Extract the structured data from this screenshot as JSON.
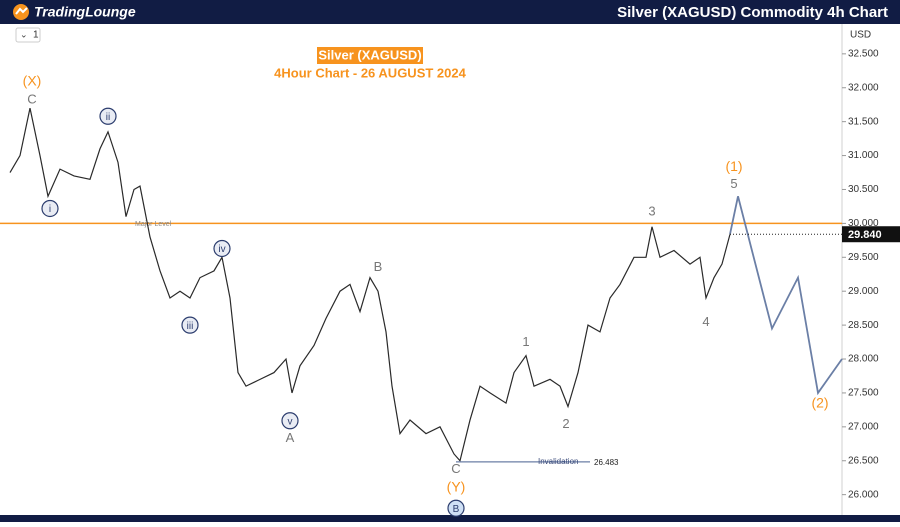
{
  "header": {
    "brand": "TradingLounge",
    "title": "Silver (XAGUSD) Commodity 4h Chart"
  },
  "chart_data": {
    "type": "line",
    "title": "Silver (XAGUSD)",
    "subtitle": "4Hour Chart - 26 AUGUST 2024",
    "interval": "1",
    "currency": "USD",
    "xlim": [
      0,
      416
    ],
    "ylim": [
      25.7,
      32.94
    ],
    "yticks": [
      {
        "value": 26,
        "label": "26.000"
      },
      {
        "value": 26.5,
        "label": "26.500"
      },
      {
        "value": 27,
        "label": "27.000"
      },
      {
        "value": 27.5,
        "label": "27.500"
      },
      {
        "value": 28,
        "label": "28.000"
      },
      {
        "value": 28.5,
        "label": "28.500"
      },
      {
        "value": 29,
        "label": "29.000"
      },
      {
        "value": 29.5,
        "label": "29.500"
      },
      {
        "value": 30,
        "label": "30.000"
      },
      {
        "value": 30.5,
        "label": "30.500"
      },
      {
        "value": 31,
        "label": "31.000"
      },
      {
        "value": 31.5,
        "label": "31.500"
      },
      {
        "value": 32,
        "label": "32.000"
      },
      {
        "value": 32.5,
        "label": "32.500"
      }
    ],
    "series": [
      {
        "color": "#2a2a2a",
        "x": [
          0,
          5,
          10,
          15,
          19,
          25,
          32,
          40,
          45,
          49,
          54,
          58,
          62,
          65,
          70,
          75,
          80,
          85,
          90,
          95,
          102,
          106,
          110,
          114,
          118,
          125,
          132,
          138,
          141,
          145,
          152,
          158,
          165,
          170,
          175,
          180,
          184,
          188,
          191,
          195,
          200,
          208,
          215,
          222,
          225,
          230,
          235,
          240,
          248,
          252,
          258,
          262,
          270,
          275,
          279,
          284,
          289,
          295,
          300,
          305,
          312,
          318,
          321,
          325,
          332,
          340,
          345,
          348,
          352,
          356,
          360
        ],
        "values": [
          30.75,
          31.0,
          31.7,
          31.0,
          30.4,
          30.8,
          30.7,
          30.65,
          31.1,
          31.35,
          30.9,
          30.1,
          30.5,
          30.55,
          29.8,
          29.3,
          28.9,
          29.0,
          28.9,
          29.2,
          29.3,
          29.5,
          28.9,
          27.8,
          27.6,
          27.7,
          27.8,
          28.0,
          27.5,
          27.9,
          28.2,
          28.6,
          29.0,
          29.1,
          28.7,
          29.2,
          29.0,
          28.4,
          27.6,
          26.9,
          27.1,
          26.9,
          27.0,
          26.6,
          26.5,
          27.1,
          27.6,
          27.5,
          27.35,
          27.8,
          28.05,
          27.6,
          27.7,
          27.6,
          27.3,
          27.8,
          28.5,
          28.4,
          28.9,
          29.1,
          29.5,
          29.5,
          29.95,
          29.5,
          29.6,
          29.4,
          29.5,
          28.9,
          29.2,
          29.4,
          29.84
        ]
      },
      {
        "color": "#6b7fa6",
        "style": "projection",
        "x": [
          360,
          364,
          381,
          394,
          404,
          416
        ],
        "values": [
          29.84,
          30.4,
          28.45,
          29.2,
          27.5,
          28.0
        ]
      }
    ],
    "levels": [
      {
        "value": 30,
        "label": "Major Level",
        "color": "#f7931e"
      }
    ],
    "invalidation": {
      "label": "Invalidation",
      "value": 26.483,
      "x": [
        223,
        290
      ]
    },
    "last_price": {
      "value": 29.84,
      "label": "29.840"
    },
    "annotations": [
      {
        "text": "(X)",
        "x": 11,
        "y": 32.09,
        "style": "orange"
      },
      {
        "text": "C",
        "x": 11,
        "y": 31.82,
        "style": "gray"
      },
      {
        "text": "ii",
        "x": 49,
        "y": 31.58,
        "style": "circled"
      },
      {
        "text": "i",
        "x": 20,
        "y": 30.22,
        "style": "circled"
      },
      {
        "text": "iii",
        "x": 90,
        "y": 28.5,
        "style": "circled"
      },
      {
        "text": "iv",
        "x": 106,
        "y": 29.63,
        "style": "circled"
      },
      {
        "text": "v",
        "x": 140,
        "y": 27.09,
        "style": "circled"
      },
      {
        "text": "A",
        "x": 140,
        "y": 26.83,
        "style": "gray"
      },
      {
        "text": "B",
        "x": 184,
        "y": 29.35,
        "style": "gray"
      },
      {
        "text": "C",
        "x": 223,
        "y": 26.37,
        "style": "gray"
      },
      {
        "text": "(Y)",
        "x": 223,
        "y": 26.1,
        "style": "orange"
      },
      {
        "text": "B",
        "x": 223,
        "y": 25.8,
        "style": "circled-blue"
      },
      {
        "text": "1",
        "x": 258,
        "y": 28.24,
        "style": "gray"
      },
      {
        "text": "2",
        "x": 278,
        "y": 27.03,
        "style": "gray"
      },
      {
        "text": "3",
        "x": 321,
        "y": 30.17,
        "style": "gray"
      },
      {
        "text": "4",
        "x": 348,
        "y": 28.54,
        "style": "gray"
      },
      {
        "text": "5",
        "x": 362,
        "y": 30.57,
        "style": "gray"
      },
      {
        "text": "(1)",
        "x": 362,
        "y": 30.83,
        "style": "orange"
      },
      {
        "text": "(2)",
        "x": 405,
        "y": 27.34,
        "style": "orange"
      }
    ]
  }
}
